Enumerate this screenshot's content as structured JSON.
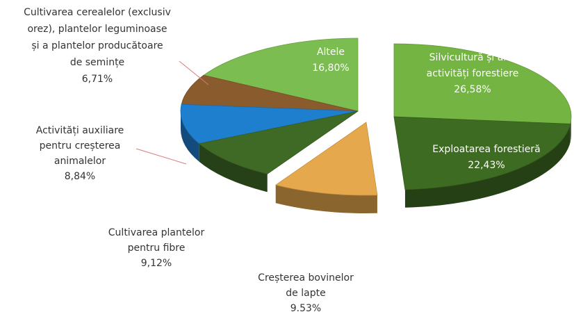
{
  "chart_data": {
    "type": "pie3d",
    "categories": [
      [
        "Silvicultură și alte",
        "activități forestiere"
      ],
      [
        "Exploatarea forestieră"
      ],
      [
        "Creșterea bovinelor",
        "de lapte"
      ],
      [
        "Cultivarea plantelor",
        "pentru fibre"
      ],
      [
        "Activități auxiliare",
        "pentru creșterea",
        "animalelor"
      ],
      [
        "Cultivarea cerealelor (exclusiv",
        "orez), plantelor leguminoase",
        "și a plantelor producătoare",
        "de semințe"
      ],
      [
        "Altele"
      ]
    ],
    "values": [
      26.58,
      22.43,
      9.53,
      9.12,
      8.84,
      6.71,
      16.8
    ],
    "value_labels": [
      "26,58%",
      "22,43%",
      "9.53%",
      "9,12%",
      "8,84%",
      "6,71%",
      "16,80%"
    ],
    "colors": [
      "#73b443",
      "#3e6b22",
      "#e6a84c",
      "#3f6a26",
      "#1f7fcf",
      "#8a5b2c",
      "#7bbd50"
    ]
  }
}
